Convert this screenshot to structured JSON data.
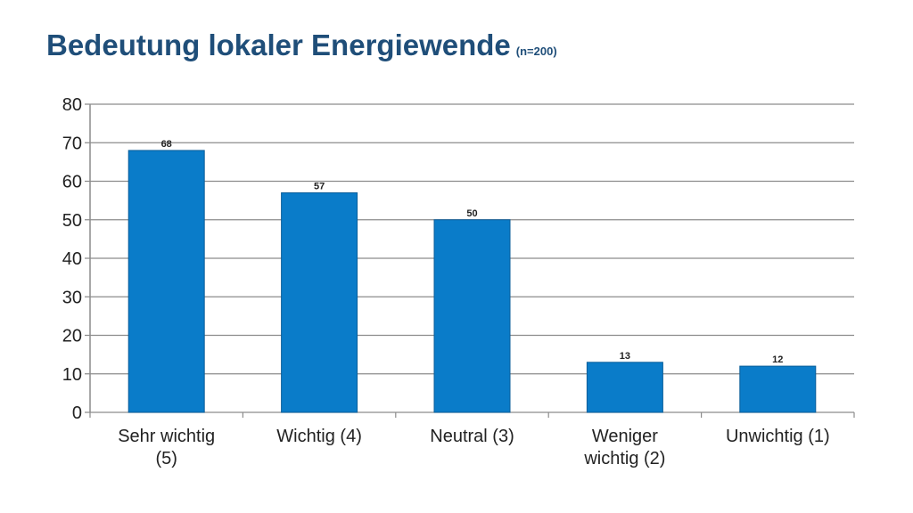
{
  "header": {
    "title": "Bedeutung lokaler Energiewende",
    "subtitle": "(n=200)"
  },
  "chart_data": {
    "type": "bar",
    "title": "Bedeutung lokaler Energiewende",
    "subtitle": "(n=200)",
    "categories": [
      [
        "Sehr wichtig",
        "(5)"
      ],
      [
        "Wichtig (4)"
      ],
      [
        "Neutral (3)"
      ],
      [
        "Weniger",
        "wichtig (2)"
      ],
      [
        "Unwichtig (1)"
      ]
    ],
    "values": [
      68,
      57,
      50,
      13,
      12
    ],
    "ylim": [
      0,
      80
    ],
    "yticks": [
      0,
      10,
      20,
      30,
      40,
      50,
      60,
      70,
      80
    ],
    "xlabel": "",
    "ylabel": "",
    "grid": true,
    "data_labels": true,
    "colors": {
      "bar": "#0a7cc9",
      "bar_border": "#0a5e9a",
      "grid": "#8c8c8c",
      "title": "#1f4e79"
    }
  }
}
